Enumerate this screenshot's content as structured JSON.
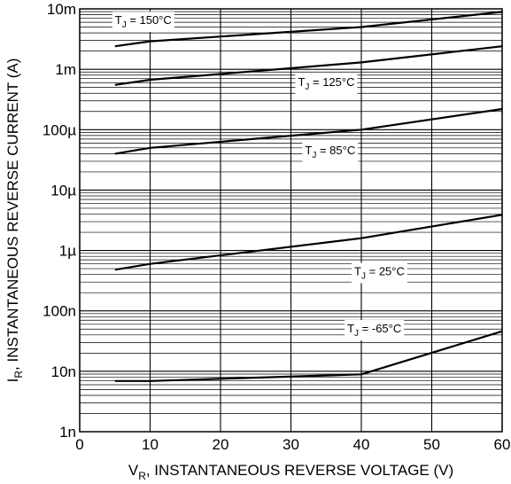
{
  "chart_data": {
    "type": "line",
    "title": "",
    "xlabel": {
      "main": "V",
      "sub": "R",
      "rest": ", INSTANTANEOUS REVERSE VOLTAGE (V)"
    },
    "ylabel": {
      "main": "I",
      "sub": "R",
      "rest": ", INSTANTANEOUS REVERSE CURRENT (A)"
    },
    "xlim": [
      0,
      60
    ],
    "ylim": [
      1e-09,
      0.01
    ],
    "yscale": "log",
    "grid": true,
    "x_ticks": [
      {
        "value": 0,
        "label": "0"
      },
      {
        "value": 10,
        "label": "10"
      },
      {
        "value": 20,
        "label": "20"
      },
      {
        "value": 30,
        "label": "30"
      },
      {
        "value": 40,
        "label": "40"
      },
      {
        "value": 50,
        "label": "50"
      },
      {
        "value": 60,
        "label": "60"
      }
    ],
    "y_ticks": [
      {
        "value": 1e-09,
        "label": "1n"
      },
      {
        "value": 1e-08,
        "label": "10n"
      },
      {
        "value": 1e-07,
        "label": "100n"
      },
      {
        "value": 1e-06,
        "label": "1µ"
      },
      {
        "value": 1e-05,
        "label": "10µ"
      },
      {
        "value": 0.0001,
        "label": "100µ"
      },
      {
        "value": 0.001,
        "label": "1m"
      },
      {
        "value": 0.01,
        "label": "10m"
      }
    ],
    "series": [
      {
        "name": "150°C",
        "label_sub": "J",
        "label_pre": "T",
        "label_rest": " = 150°C",
        "label_anchor": [
          5,
          0.0056
        ],
        "x": [
          5,
          10,
          40,
          60
        ],
        "y": [
          0.0024,
          0.0029,
          0.005,
          0.0089
        ]
      },
      {
        "name": "125°C",
        "label_sub": "J",
        "label_pre": "T",
        "label_rest": " = 125°C",
        "label_anchor": [
          31,
          0.00053
        ],
        "x": [
          5,
          10,
          40,
          60
        ],
        "y": [
          0.00055,
          0.00067,
          0.0013,
          0.0024
        ]
      },
      {
        "name": "85°C",
        "label_sub": "J",
        "label_pre": "T",
        "label_rest": " = 85°C",
        "label_anchor": [
          32,
          3.9e-05
        ],
        "x": [
          5,
          10,
          40,
          60
        ],
        "y": [
          4e-05,
          5e-05,
          0.0001,
          0.00022
        ]
      },
      {
        "name": "25°C",
        "label_sub": "J",
        "label_pre": "T",
        "label_rest": " = 25°C",
        "label_anchor": [
          39,
          3.9e-07
        ],
        "x": [
          5,
          10,
          40,
          60
        ],
        "y": [
          4.8e-07,
          6e-07,
          1.6e-06,
          3.9e-06
        ]
      },
      {
        "name": "-65°C",
        "label_sub": "J",
        "label_pre": "T",
        "label_rest": " = -65°C",
        "label_anchor": [
          38,
          4.4e-08
        ],
        "x": [
          5,
          10,
          40,
          60
        ],
        "y": [
          6.9e-09,
          6.9e-09,
          8.9e-09,
          4.6e-08
        ]
      }
    ]
  }
}
